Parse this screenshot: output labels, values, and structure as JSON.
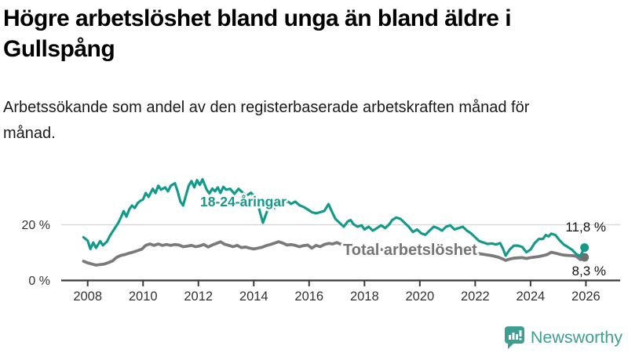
{
  "header": {
    "title": "Högre arbetslöshet bland unga än bland äldre i Gullspång",
    "subtitle": "Arbetssökande som andel av den registerbaserade arbetskraften månad för månad."
  },
  "y_axis": {
    "ticks": [
      {
        "value": 0,
        "label": "0 %"
      },
      {
        "value": 20,
        "label": "20 %"
      }
    ]
  },
  "x_axis": {
    "ticks": [
      {
        "value": 2008,
        "label": "2008"
      },
      {
        "value": 2010,
        "label": "2010"
      },
      {
        "value": 2012,
        "label": "2012"
      },
      {
        "value": 2014,
        "label": "2014"
      },
      {
        "value": 2016,
        "label": "2016"
      },
      {
        "value": 2018,
        "label": "2018"
      },
      {
        "value": 2020,
        "label": "2020"
      },
      {
        "value": 2022,
        "label": "2022"
      },
      {
        "value": 2024,
        "label": "2024"
      },
      {
        "value": 2026,
        "label": "2026"
      }
    ]
  },
  "chart_data": {
    "type": "line",
    "title": "Högre arbetslöshet bland unga än bland äldre i Gullspång",
    "xlabel": "",
    "ylabel": "Arbetssökande som andel av den registerbaserade arbetskraften",
    "unit": "%",
    "xlim": [
      2007.7,
      2026.3
    ],
    "ylim": [
      0,
      40
    ],
    "grid": "single horizontal gridline at 20 %",
    "legend_position": "inline labels on lines, end values at right",
    "series": [
      {
        "name": "18-24-åringar",
        "color": "#149a8a",
        "end_value": 11.8,
        "end_value_label": "11,8 %",
        "points": [
          [
            2007.85,
            15.5
          ],
          [
            2008.0,
            14.3
          ],
          [
            2008.1,
            11.3
          ],
          [
            2008.2,
            13.6
          ],
          [
            2008.3,
            11.7
          ],
          [
            2008.45,
            14.1
          ],
          [
            2008.55,
            12.6
          ],
          [
            2008.7,
            14.0
          ],
          [
            2008.8,
            16.0
          ],
          [
            2008.95,
            18.3
          ],
          [
            2009.1,
            20.6
          ],
          [
            2009.2,
            22.6
          ],
          [
            2009.3,
            24.9
          ],
          [
            2009.4,
            22.9
          ],
          [
            2009.5,
            25.5
          ],
          [
            2009.6,
            26.9
          ],
          [
            2009.7,
            26.0
          ],
          [
            2009.8,
            27.7
          ],
          [
            2009.9,
            28.6
          ],
          [
            2010.0,
            29.1
          ],
          [
            2010.1,
            31.4
          ],
          [
            2010.2,
            30.0
          ],
          [
            2010.35,
            32.9
          ],
          [
            2010.45,
            31.4
          ],
          [
            2010.55,
            34.0
          ],
          [
            2010.65,
            32.6
          ],
          [
            2010.8,
            33.4
          ],
          [
            2010.9,
            32.0
          ],
          [
            2011.0,
            34.0
          ],
          [
            2011.15,
            34.9
          ],
          [
            2011.25,
            32.0
          ],
          [
            2011.35,
            28.3
          ],
          [
            2011.45,
            26.9
          ],
          [
            2011.55,
            30.6
          ],
          [
            2011.65,
            34.0
          ],
          [
            2011.75,
            35.7
          ],
          [
            2011.85,
            33.4
          ],
          [
            2011.95,
            36.0
          ],
          [
            2012.05,
            34.3
          ],
          [
            2012.15,
            36.3
          ],
          [
            2012.3,
            32.6
          ],
          [
            2012.4,
            31.2
          ],
          [
            2012.5,
            33.0
          ],
          [
            2012.6,
            32.0
          ],
          [
            2012.7,
            33.4
          ],
          [
            2012.8,
            31.4
          ],
          [
            2012.9,
            33.6
          ],
          [
            2013.0,
            32.6
          ],
          [
            2013.15,
            32.9
          ],
          [
            2013.3,
            31.1
          ],
          [
            2013.45,
            32.9
          ],
          [
            2013.6,
            31.5
          ],
          [
            2013.75,
            30.5
          ],
          [
            2013.9,
            31.5
          ],
          [
            2014.05,
            30.0
          ],
          [
            2014.2,
            25.5
          ],
          [
            2014.33,
            20.7
          ],
          [
            2014.45,
            24.0
          ],
          [
            2014.6,
            27.7
          ],
          [
            2014.75,
            26.0
          ],
          [
            2014.9,
            27.7
          ],
          [
            2015.05,
            26.5
          ],
          [
            2015.2,
            28.6
          ],
          [
            2015.35,
            27.5
          ],
          [
            2015.5,
            28.3
          ],
          [
            2015.65,
            27.0
          ],
          [
            2015.8,
            26.4
          ],
          [
            2015.95,
            25.5
          ],
          [
            2016.1,
            24.5
          ],
          [
            2016.25,
            24.1
          ],
          [
            2016.4,
            24.5
          ],
          [
            2016.55,
            25.0
          ],
          [
            2016.7,
            27.4
          ],
          [
            2016.85,
            24.1
          ],
          [
            2016.95,
            22.1
          ],
          [
            2017.1,
            20.7
          ],
          [
            2017.25,
            19.3
          ],
          [
            2017.4,
            21.2
          ],
          [
            2017.5,
            21.7
          ],
          [
            2017.6,
            20.2
          ],
          [
            2017.75,
            19.3
          ],
          [
            2017.9,
            19.8
          ],
          [
            2018.0,
            18.3
          ],
          [
            2018.15,
            19.3
          ],
          [
            2018.3,
            17.9
          ],
          [
            2018.45,
            18.8
          ],
          [
            2018.6,
            19.8
          ],
          [
            2018.75,
            18.8
          ],
          [
            2018.9,
            20.2
          ],
          [
            2019.0,
            21.7
          ],
          [
            2019.15,
            22.6
          ],
          [
            2019.3,
            22.1
          ],
          [
            2019.45,
            20.7
          ],
          [
            2019.6,
            19.3
          ],
          [
            2019.75,
            17.4
          ],
          [
            2019.9,
            18.3
          ],
          [
            2020.05,
            16.9
          ],
          [
            2020.2,
            16.4
          ],
          [
            2020.35,
            17.9
          ],
          [
            2020.5,
            19.3
          ],
          [
            2020.65,
            18.8
          ],
          [
            2020.8,
            17.9
          ],
          [
            2020.95,
            19.3
          ],
          [
            2021.1,
            19.8
          ],
          [
            2021.25,
            18.3
          ],
          [
            2021.4,
            18.8
          ],
          [
            2021.55,
            19.3
          ],
          [
            2021.7,
            17.9
          ],
          [
            2021.85,
            16.9
          ],
          [
            2022.0,
            15.5
          ],
          [
            2022.15,
            14.1
          ],
          [
            2022.3,
            13.6
          ],
          [
            2022.45,
            13.1
          ],
          [
            2022.6,
            13.3
          ],
          [
            2022.75,
            12.9
          ],
          [
            2022.9,
            13.4
          ],
          [
            2023.0,
            11.5
          ],
          [
            2023.1,
            8.9
          ],
          [
            2023.25,
            11.1
          ],
          [
            2023.4,
            12.5
          ],
          [
            2023.55,
            12.5
          ],
          [
            2023.7,
            12.0
          ],
          [
            2023.85,
            10.1
          ],
          [
            2024.0,
            11.1
          ],
          [
            2024.15,
            13.4
          ],
          [
            2024.3,
            14.9
          ],
          [
            2024.45,
            14.9
          ],
          [
            2024.55,
            16.3
          ],
          [
            2024.65,
            15.8
          ],
          [
            2024.75,
            16.8
          ],
          [
            2024.9,
            16.3
          ],
          [
            2025.05,
            14.4
          ],
          [
            2025.2,
            12.9
          ],
          [
            2025.35,
            12.0
          ],
          [
            2025.5,
            11.0
          ],
          [
            2025.65,
            9.5
          ],
          [
            2025.8,
            8.7
          ],
          [
            2025.95,
            11.8
          ]
        ]
      },
      {
        "name": "Total arbetslöshet",
        "color": "#7a7a7a",
        "end_value": 8.3,
        "end_value_label": "8,3 %",
        "points": [
          [
            2007.85,
            6.9
          ],
          [
            2008.0,
            6.3
          ],
          [
            2008.15,
            5.9
          ],
          [
            2008.3,
            5.5
          ],
          [
            2008.45,
            5.7
          ],
          [
            2008.6,
            5.9
          ],
          [
            2008.75,
            6.4
          ],
          [
            2008.9,
            7.0
          ],
          [
            2009.05,
            8.3
          ],
          [
            2009.2,
            9.0
          ],
          [
            2009.35,
            9.3
          ],
          [
            2009.5,
            9.8
          ],
          [
            2009.65,
            10.2
          ],
          [
            2009.8,
            10.7
          ],
          [
            2009.95,
            11.2
          ],
          [
            2010.1,
            12.6
          ],
          [
            2010.25,
            13.1
          ],
          [
            2010.4,
            12.6
          ],
          [
            2010.55,
            13.1
          ],
          [
            2010.7,
            12.6
          ],
          [
            2010.85,
            12.9
          ],
          [
            2011.0,
            12.6
          ],
          [
            2011.15,
            12.9
          ],
          [
            2011.3,
            12.7
          ],
          [
            2011.45,
            12.1
          ],
          [
            2011.6,
            12.3
          ],
          [
            2011.75,
            12.6
          ],
          [
            2011.9,
            12.1
          ],
          [
            2012.05,
            12.4
          ],
          [
            2012.2,
            12.9
          ],
          [
            2012.35,
            12.0
          ],
          [
            2012.5,
            12.7
          ],
          [
            2012.65,
            13.3
          ],
          [
            2012.8,
            13.9
          ],
          [
            2012.95,
            13.0
          ],
          [
            2013.1,
            12.6
          ],
          [
            2013.25,
            12.1
          ],
          [
            2013.4,
            12.6
          ],
          [
            2013.55,
            11.8
          ],
          [
            2013.7,
            12.0
          ],
          [
            2013.85,
            11.6
          ],
          [
            2014.0,
            11.3
          ],
          [
            2014.15,
            11.6
          ],
          [
            2014.3,
            11.9
          ],
          [
            2014.45,
            12.5
          ],
          [
            2014.6,
            12.9
          ],
          [
            2014.75,
            13.4
          ],
          [
            2014.9,
            13.9
          ],
          [
            2015.05,
            13.4
          ],
          [
            2015.2,
            12.7
          ],
          [
            2015.35,
            12.9
          ],
          [
            2015.5,
            12.6
          ],
          [
            2015.65,
            12.1
          ],
          [
            2015.8,
            12.5
          ],
          [
            2015.95,
            12.7
          ],
          [
            2016.1,
            11.6
          ],
          [
            2016.25,
            12.6
          ],
          [
            2016.4,
            12.1
          ],
          [
            2016.55,
            12.9
          ],
          [
            2016.7,
            13.3
          ],
          [
            2016.85,
            13.1
          ],
          [
            2017.0,
            13.6
          ],
          [
            2017.15,
            13.0
          ],
          [
            2017.3,
            12.7
          ],
          [
            2017.5,
            12.4
          ],
          [
            2017.7,
            12.1
          ],
          [
            2017.9,
            11.9
          ],
          [
            2018.1,
            11.6
          ],
          [
            2018.35,
            11.3
          ],
          [
            2018.6,
            11.1
          ],
          [
            2018.85,
            10.9
          ],
          [
            2019.1,
            10.7
          ],
          [
            2019.35,
            10.6
          ],
          [
            2019.6,
            10.4
          ],
          [
            2019.85,
            10.6
          ],
          [
            2020.1,
            11.0
          ],
          [
            2020.35,
            11.6
          ],
          [
            2020.6,
            11.9
          ],
          [
            2020.85,
            11.7
          ],
          [
            2021.1,
            11.4
          ],
          [
            2021.35,
            11.0
          ],
          [
            2021.6,
            10.6
          ],
          [
            2021.85,
            10.1
          ],
          [
            2022.1,
            9.7
          ],
          [
            2022.35,
            9.3
          ],
          [
            2022.6,
            8.9
          ],
          [
            2022.85,
            8.3
          ],
          [
            2023.0,
            7.7
          ],
          [
            2023.1,
            7.2
          ],
          [
            2023.25,
            7.7
          ],
          [
            2023.4,
            8.0
          ],
          [
            2023.55,
            8.1
          ],
          [
            2023.7,
            8.2
          ],
          [
            2023.85,
            7.9
          ],
          [
            2024.0,
            8.2
          ],
          [
            2024.15,
            8.4
          ],
          [
            2024.3,
            8.6
          ],
          [
            2024.45,
            8.9
          ],
          [
            2024.6,
            9.3
          ],
          [
            2024.75,
            10.1
          ],
          [
            2024.9,
            9.8
          ],
          [
            2025.05,
            9.4
          ],
          [
            2025.2,
            9.1
          ],
          [
            2025.35,
            9.0
          ],
          [
            2025.5,
            8.9
          ],
          [
            2025.65,
            8.7
          ],
          [
            2025.8,
            7.5
          ],
          [
            2025.95,
            8.3
          ]
        ]
      }
    ]
  },
  "footer": {
    "brand": "Newsworthy",
    "logo_icon": "newsworthy-bubble-barchart-icon",
    "brand_color": "#3d9e92"
  },
  "colors": {
    "accent_teal": "#149a8a",
    "gray_line": "#7a7a7a",
    "gray_dot": "#6e6e6e",
    "gridline": "#d9d9d9",
    "axis": "#3a3a3a",
    "tick_text": "#333333"
  }
}
